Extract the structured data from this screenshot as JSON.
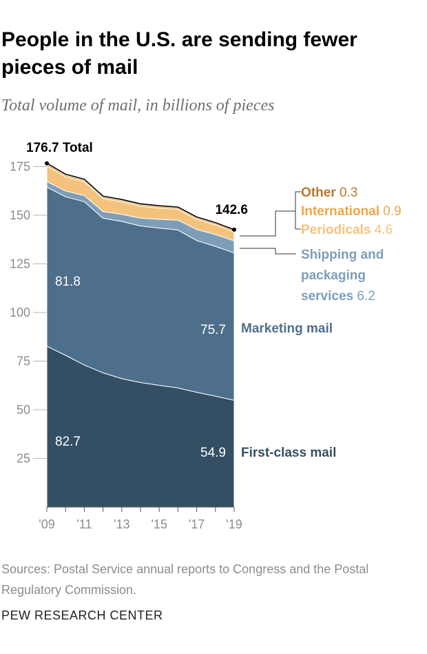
{
  "title": "People in the U.S. are sending fewer pieces of mail",
  "subtitle": "Total volume of mail, in billions of pieces",
  "source": "Sources: Postal Service annual reports to Congress and the Postal Regulatory Commission.",
  "credit": "PEW RESEARCH CENTER",
  "colors": {
    "first_class": "#344f63",
    "marketing": "#4e6f8b",
    "shipping": "#7e9eb8",
    "periodicals": "#f3c37d",
    "international": "#eea84a",
    "other": "#b9782b",
    "axis_text": "#8c8c8c"
  },
  "chart_data": {
    "type": "area",
    "stacked": true,
    "x": [
      2009,
      2010,
      2011,
      2012,
      2013,
      2014,
      2015,
      2016,
      2017,
      2018,
      2019
    ],
    "x_tick_labels": [
      "'09",
      "'11",
      "'13",
      "'15",
      "'17",
      "'19"
    ],
    "x_tick_values": [
      2009,
      2011,
      2013,
      2015,
      2017,
      2019
    ],
    "y_ticks": [
      25,
      50,
      75,
      100,
      125,
      150,
      175
    ],
    "ylim": [
      0,
      180
    ],
    "series": [
      {
        "name": "First-class mail",
        "key": "first_class",
        "values": [
          82.7,
          78.0,
          73.0,
          69.0,
          66.0,
          64.0,
          62.6,
          61.2,
          59.0,
          57.0,
          54.9
        ]
      },
      {
        "name": "Marketing mail",
        "key": "marketing",
        "values": [
          81.8,
          81.5,
          84.0,
          79.5,
          80.8,
          80.5,
          80.8,
          81.2,
          78.0,
          77.0,
          75.7
        ]
      },
      {
        "name": "Shipping and packaging services",
        "key": "shipping",
        "values": [
          2.8,
          3.0,
          3.1,
          3.4,
          3.7,
          4.0,
          4.5,
          5.1,
          5.7,
          6.1,
          6.2
        ]
      },
      {
        "name": "Periodicals",
        "key": "periodicals",
        "values": [
          7.9,
          7.3,
          7.1,
          6.7,
          6.4,
          6.1,
          5.8,
          5.5,
          5.2,
          4.9,
          4.6
        ]
      },
      {
        "name": "International",
        "key": "international",
        "values": [
          1.0,
          0.9,
          0.9,
          0.8,
          0.8,
          0.9,
          0.9,
          0.9,
          0.9,
          0.9,
          0.9
        ]
      },
      {
        "name": "Other",
        "key": "other",
        "values": [
          0.5,
          0.4,
          0.4,
          0.4,
          0.4,
          0.4,
          0.3,
          0.3,
          0.3,
          0.3,
          0.3
        ]
      }
    ],
    "total_label": "Total",
    "total_start": "176.7",
    "total_end": "142.6",
    "area_labels": [
      {
        "text": "81.8",
        "series": "marketing",
        "at": "start"
      },
      {
        "text": "82.7",
        "series": "first_class",
        "at": "start"
      },
      {
        "text": "75.7",
        "series": "marketing",
        "at": "end"
      },
      {
        "text": "54.9",
        "series": "first_class",
        "at": "end"
      }
    ],
    "legend": [
      {
        "name": "Other",
        "value": "0.3",
        "key": "other"
      },
      {
        "name": "International",
        "value": "0.9",
        "key": "international"
      },
      {
        "name": "Periodicals",
        "value": "4.6",
        "key": "periodicals"
      },
      {
        "name": "Shipping and packaging services",
        "lines": [
          "Shipping and",
          "packaging",
          "services"
        ],
        "value": "6.2",
        "key": "shipping"
      },
      {
        "name": "Marketing mail",
        "key": "marketing"
      },
      {
        "name": "First-class mail",
        "key": "first_class"
      }
    ]
  }
}
